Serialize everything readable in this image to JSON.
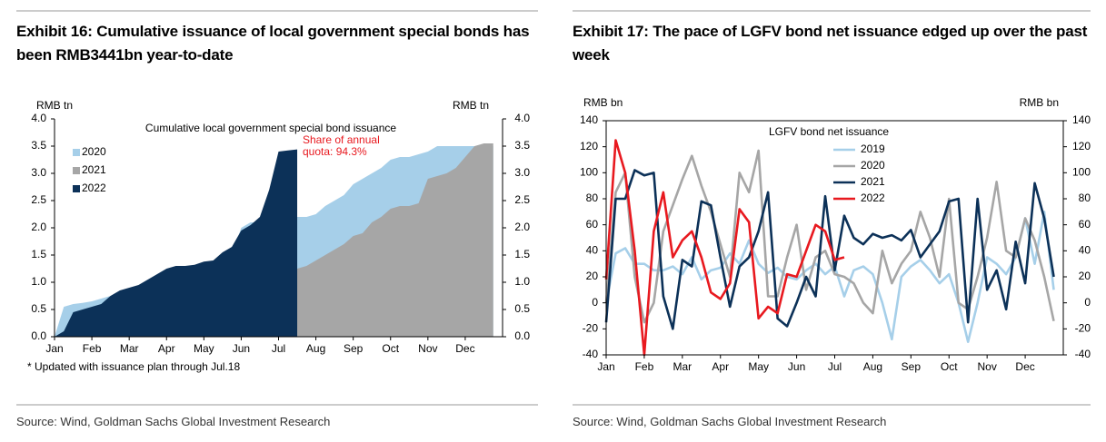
{
  "chart_data": [
    {
      "type": "area",
      "title": "Exhibit 16: Cumulative issuance of local government special bonds has been RMB3441bn year-to-date",
      "subtitle": "Cumulative local government special bond issuance",
      "annotation": "Share of annual quota: 94.3%",
      "note": "* Updated with issuance plan through Jul.18",
      "source": "Source: Wind, Goldman Sachs Global Investment Research",
      "y_label": "RMB tn",
      "y2_label": "RMB tn",
      "categories": [
        "Jan",
        null,
        null,
        null,
        "Feb",
        null,
        null,
        null,
        "Mar",
        null,
        null,
        null,
        "Apr",
        null,
        null,
        null,
        "May",
        null,
        null,
        null,
        "Jun",
        null,
        null,
        null,
        "Jul",
        null,
        null,
        null,
        "Aug",
        null,
        null,
        null,
        "Sep",
        null,
        null,
        null,
        "Oct",
        null,
        null,
        null,
        "Nov",
        null,
        null,
        null,
        "Dec",
        null,
        null,
        null
      ],
      "series": [
        {
          "name": "2020",
          "color": "#a6cfe9",
          "values": [
            0,
            0.55,
            0.6,
            0.62,
            0.65,
            0.7,
            0.75,
            0.8,
            0.85,
            0.9,
            0.95,
            1.0,
            1.1,
            1.2,
            1.25,
            1.3,
            1.3,
            1.35,
            1.4,
            1.5,
            2.0,
            2.1,
            2.1,
            2.15,
            2.15,
            2.2,
            2.2,
            2.2,
            2.25,
            2.4,
            2.5,
            2.6,
            2.8,
            2.9,
            3.0,
            3.1,
            3.25,
            3.3,
            3.3,
            3.35,
            3.4,
            3.5,
            3.5,
            3.5,
            3.5,
            3.5,
            3.5,
            3.5
          ]
        },
        {
          "name": "2021",
          "color": "#a6a6a6",
          "values": [
            0,
            0.05,
            0.1,
            0.15,
            0.2,
            0.25,
            0.3,
            0.35,
            0.4,
            0.45,
            0.5,
            0.55,
            0.6,
            0.65,
            0.7,
            0.75,
            0.8,
            0.85,
            0.9,
            0.95,
            1.0,
            1.05,
            1.1,
            1.15,
            1.2,
            1.22,
            1.25,
            1.3,
            1.4,
            1.5,
            1.6,
            1.7,
            1.85,
            1.9,
            2.1,
            2.2,
            2.35,
            2.4,
            2.4,
            2.45,
            2.9,
            2.95,
            3.0,
            3.1,
            3.3,
            3.5,
            3.55,
            3.55
          ]
        },
        {
          "name": "2022",
          "color": "#0c3158",
          "values": [
            0,
            0.1,
            0.45,
            0.5,
            0.55,
            0.6,
            0.75,
            0.85,
            0.9,
            0.95,
            1.05,
            1.15,
            1.25,
            1.3,
            1.3,
            1.32,
            1.38,
            1.4,
            1.55,
            1.65,
            1.95,
            2.05,
            2.2,
            2.7,
            3.4,
            3.42,
            3.44,
            null,
            null,
            null,
            null,
            null,
            null,
            null,
            null,
            null,
            null,
            null,
            null,
            null,
            null,
            null,
            null,
            null,
            null,
            null,
            null,
            null
          ]
        }
      ],
      "ylim": [
        0,
        4
      ],
      "yticks": [
        {
          "value": 0,
          "label": "0.0"
        },
        0.5,
        {
          "value": 1,
          "label": "1.0"
        },
        1.5,
        {
          "value": 2,
          "label": "2.0"
        },
        2.5,
        {
          "value": 3,
          "label": "3.0"
        },
        3.5,
        {
          "value": 4,
          "label": "4.0"
        }
      ],
      "y2lim": [
        0,
        4
      ],
      "y2ticks": [
        {
          "value": 0,
          "label": "0.0"
        },
        0.5,
        {
          "value": 1,
          "label": "1.0"
        },
        1.5,
        {
          "value": 2,
          "label": "2.0"
        },
        2.5,
        {
          "value": 3,
          "label": "3.0"
        },
        3.5,
        {
          "value": 4,
          "label": "4.0"
        }
      ],
      "legend": "upper left"
    },
    {
      "type": "line",
      "title": "Exhibit 17: The pace of LGFV bond net issuance edged up over the past week",
      "subtitle": "LGFV bond net issuance",
      "source": "Source: Wind, Goldman Sachs Global Investment Research",
      "y_label": "RMB bn",
      "y2_label": "RMB bn",
      "categories": [
        "Jan",
        null,
        null,
        null,
        "Feb",
        null,
        null,
        null,
        "Mar",
        null,
        null,
        null,
        "Apr",
        null,
        null,
        null,
        "May",
        null,
        null,
        null,
        "Jun",
        null,
        null,
        null,
        "Jul",
        null,
        null,
        null,
        "Aug",
        null,
        null,
        null,
        "Sep",
        null,
        null,
        null,
        "Oct",
        null,
        null,
        null,
        "Nov",
        null,
        null,
        null,
        "Dec",
        null,
        null,
        null
      ],
      "series": [
        {
          "name": "2019",
          "color": "#a6cfe9",
          "values": [
            0,
            38,
            42,
            30,
            30,
            25,
            25,
            28,
            22,
            35,
            18,
            25,
            27,
            38,
            30,
            48,
            30,
            23,
            27,
            20,
            18,
            25,
            30,
            22,
            28,
            5,
            25,
            28,
            22,
            0,
            -28,
            20,
            28,
            33,
            25,
            15,
            22,
            0,
            -30,
            0,
            35,
            30,
            22,
            35,
            65,
            30,
            70,
            10
          ]
        },
        {
          "name": "2020",
          "color": "#a6a6a6",
          "values": [
            0,
            85,
            100,
            20,
            -15,
            0,
            55,
            75,
            95,
            113,
            90,
            70,
            45,
            20,
            100,
            85,
            117,
            5,
            5,
            35,
            60,
            10,
            35,
            40,
            22,
            20,
            15,
            0,
            -8,
            40,
            15,
            30,
            40,
            70,
            50,
            20,
            80,
            0,
            -5,
            20,
            50,
            93,
            40,
            35,
            65,
            48,
            20,
            -14
          ]
        },
        {
          "name": "2021",
          "color": "#0c3158",
          "values": [
            -15,
            80,
            80,
            102,
            98,
            100,
            5,
            -20,
            33,
            28,
            78,
            75,
            35,
            -3,
            28,
            35,
            55,
            85,
            -12,
            -18,
            0,
            20,
            5,
            82,
            25,
            67,
            50,
            45,
            53,
            50,
            52,
            48,
            56,
            35,
            45,
            55,
            78,
            80,
            -15,
            80,
            10,
            25,
            -5,
            47,
            15,
            92,
            65,
            20
          ]
        },
        {
          "name": "2022",
          "color": "#e8191f",
          "values": [
            18,
            125,
            100,
            40,
            -40,
            55,
            85,
            35,
            48,
            55,
            35,
            8,
            3,
            15,
            72,
            62,
            -12,
            -3,
            -8,
            22,
            20,
            40,
            60,
            55,
            33,
            35,
            null,
            null,
            null,
            null,
            null,
            null,
            null,
            null,
            null,
            null,
            null,
            null,
            null,
            null,
            null,
            null,
            null,
            null,
            null,
            null,
            null,
            null
          ]
        }
      ],
      "ylim": [
        -40,
        140
      ],
      "yticks": [
        -40,
        -20,
        0,
        20,
        40,
        60,
        80,
        100,
        120,
        140
      ],
      "y2lim": [
        -40,
        140
      ],
      "y2ticks": [
        -40,
        -20,
        0,
        20,
        40,
        60,
        80,
        100,
        120,
        140
      ],
      "legend": "upper center"
    }
  ]
}
